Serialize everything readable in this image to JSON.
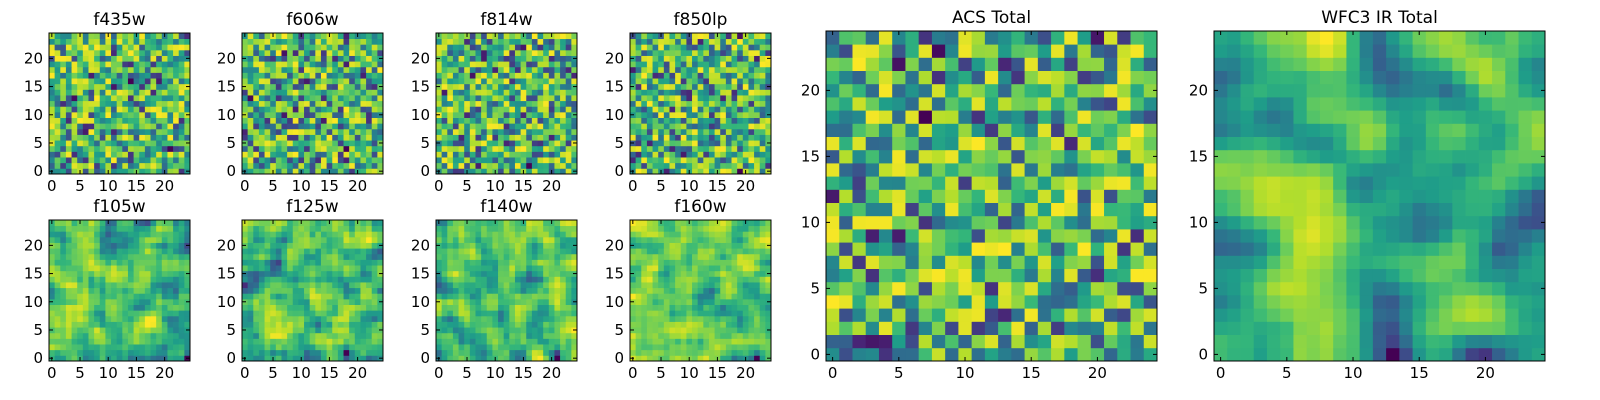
{
  "figure": {
    "background": "#ffffff",
    "colormap": "viridis"
  },
  "chart_data": [
    {
      "type": "heatmap",
      "title": "f435w",
      "grid_size": 25,
      "seed": 11,
      "smooth": 0,
      "xticks": [
        0,
        5,
        10,
        15,
        20
      ],
      "yticks": [
        0,
        5,
        10,
        15,
        20
      ],
      "xlim": [
        -0.5,
        24.5
      ],
      "ylim": [
        -0.5,
        24.5
      ]
    },
    {
      "type": "heatmap",
      "title": "f606w",
      "grid_size": 25,
      "seed": 23,
      "smooth": 0,
      "xticks": [
        0,
        5,
        10,
        15,
        20
      ],
      "yticks": [
        0,
        5,
        10,
        15,
        20
      ],
      "xlim": [
        -0.5,
        24.5
      ],
      "ylim": [
        -0.5,
        24.5
      ]
    },
    {
      "type": "heatmap",
      "title": "f814w",
      "grid_size": 25,
      "seed": 37,
      "smooth": 0,
      "xticks": [
        0,
        5,
        10,
        15,
        20
      ],
      "yticks": [
        0,
        5,
        10,
        15,
        20
      ],
      "xlim": [
        -0.5,
        24.5
      ],
      "ylim": [
        -0.5,
        24.5
      ]
    },
    {
      "type": "heatmap",
      "title": "f850lp",
      "grid_size": 25,
      "seed": 41,
      "smooth": 0,
      "xticks": [
        0,
        5,
        10,
        15,
        20
      ],
      "yticks": [
        0,
        5,
        10,
        15,
        20
      ],
      "xlim": [
        -0.5,
        24.5
      ],
      "ylim": [
        -0.5,
        24.5
      ]
    },
    {
      "type": "heatmap",
      "title": "f105w",
      "grid_size": 25,
      "seed": 53,
      "smooth": 1,
      "xticks": [
        0,
        5,
        10,
        15,
        20
      ],
      "yticks": [
        0,
        5,
        10,
        15,
        20
      ],
      "xlim": [
        -0.5,
        24.5
      ],
      "ylim": [
        -0.5,
        24.5
      ]
    },
    {
      "type": "heatmap",
      "title": "f125w",
      "grid_size": 25,
      "seed": 67,
      "smooth": 1,
      "xticks": [
        0,
        5,
        10,
        15,
        20
      ],
      "yticks": [
        0,
        5,
        10,
        15,
        20
      ],
      "xlim": [
        -0.5,
        24.5
      ],
      "ylim": [
        -0.5,
        24.5
      ]
    },
    {
      "type": "heatmap",
      "title": "f140w",
      "grid_size": 25,
      "seed": 79,
      "smooth": 1,
      "xticks": [
        0,
        5,
        10,
        15,
        20
      ],
      "yticks": [
        0,
        5,
        10,
        15,
        20
      ],
      "xlim": [
        -0.5,
        24.5
      ],
      "ylim": [
        -0.5,
        24.5
      ]
    },
    {
      "type": "heatmap",
      "title": "f160w",
      "grid_size": 25,
      "seed": 83,
      "smooth": 1,
      "xticks": [
        0,
        5,
        10,
        15,
        20
      ],
      "yticks": [
        0,
        5,
        10,
        15,
        20
      ],
      "xlim": [
        -0.5,
        24.5
      ],
      "ylim": [
        -0.5,
        24.5
      ]
    },
    {
      "type": "heatmap",
      "title": "ACS Total",
      "grid_size": 25,
      "seed": 97,
      "smooth": 0,
      "xticks": [
        0,
        5,
        10,
        15,
        20
      ],
      "yticks": [
        0,
        5,
        10,
        15,
        20
      ],
      "xlim": [
        -0.5,
        24.5
      ],
      "ylim": [
        -0.5,
        24.5
      ]
    },
    {
      "type": "heatmap",
      "title": "WFC3 IR Total",
      "grid_size": 25,
      "seed": 101,
      "smooth": 2,
      "xticks": [
        0,
        5,
        10,
        15,
        20
      ],
      "yticks": [
        0,
        5,
        10,
        15,
        20
      ],
      "xlim": [
        -0.5,
        24.5
      ],
      "ylim": [
        -0.5,
        24.5
      ]
    }
  ]
}
